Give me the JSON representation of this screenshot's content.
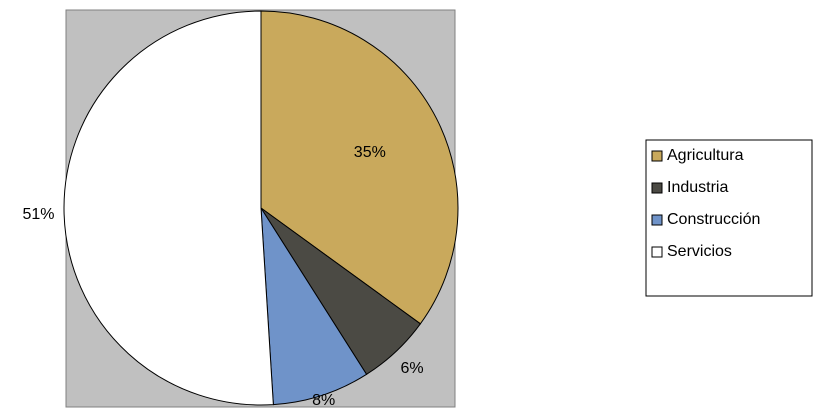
{
  "chart_data": {
    "type": "pie",
    "categories": [
      "Agricultura",
      "Industria",
      "Construcción",
      "Servicios"
    ],
    "values": [
      35,
      6,
      8,
      51
    ],
    "value_labels": [
      "35%",
      "6%",
      "8%",
      "51%"
    ],
    "colors": [
      "#c9a95c",
      "#4b4a44",
      "#6f93c9",
      "#ffffff"
    ],
    "legend": "right"
  }
}
